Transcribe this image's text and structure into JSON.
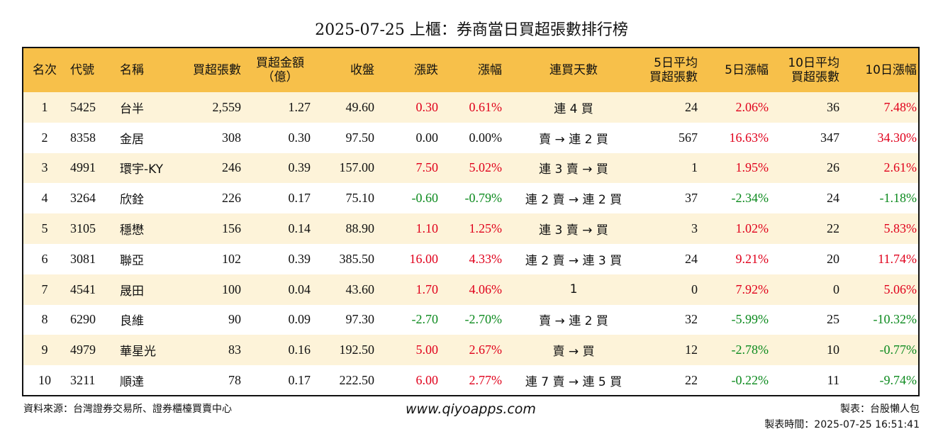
{
  "title": "2025-07-25 上櫃：券商當日買超張數排行榜",
  "headers": {
    "rank": "名次",
    "code": "代號",
    "name": "名稱",
    "net_buy_lots": "買超張數",
    "net_buy_amount": "買超金額\n（億）",
    "close": "收盤",
    "change": "漲跌",
    "change_pct": "漲幅",
    "streak": "連買天數",
    "avg5": "5日平均\n買超張數",
    "chg5": "5日漲幅",
    "avg10": "10日平均\n買超張數",
    "chg10": "10日漲幅"
  },
  "rows": [
    {
      "rank": "1",
      "code": "5425",
      "name": "台半",
      "lots": "2,559",
      "amount": "1.27",
      "close": "49.60",
      "change": "0.30",
      "change_pct": "0.61%",
      "streak": "連 4 買",
      "avg5": "24",
      "chg5": "2.06%",
      "avg10": "36",
      "chg10": "7.48%"
    },
    {
      "rank": "2",
      "code": "8358",
      "name": "金居",
      "lots": "308",
      "amount": "0.30",
      "close": "97.50",
      "change": "0.00",
      "change_pct": "0.00%",
      "streak": "賣 → 連 2 買",
      "avg5": "567",
      "chg5": "16.63%",
      "avg10": "347",
      "chg10": "34.30%"
    },
    {
      "rank": "3",
      "code": "4991",
      "name": "環宇-KY",
      "lots": "246",
      "amount": "0.39",
      "close": "157.00",
      "change": "7.50",
      "change_pct": "5.02%",
      "streak": "連 3 賣 → 買",
      "avg5": "1",
      "chg5": "1.95%",
      "avg10": "26",
      "chg10": "2.61%"
    },
    {
      "rank": "4",
      "code": "3264",
      "name": "欣銓",
      "lots": "226",
      "amount": "0.17",
      "close": "75.10",
      "change": "-0.60",
      "change_pct": "-0.79%",
      "streak": "連 2 賣 → 連 2 買",
      "avg5": "37",
      "chg5": "-2.34%",
      "avg10": "24",
      "chg10": "-1.18%"
    },
    {
      "rank": "5",
      "code": "3105",
      "name": "穩懋",
      "lots": "156",
      "amount": "0.14",
      "close": "88.90",
      "change": "1.10",
      "change_pct": "1.25%",
      "streak": "連 3 賣 → 買",
      "avg5": "3",
      "chg5": "1.02%",
      "avg10": "22",
      "chg10": "5.83%"
    },
    {
      "rank": "6",
      "code": "3081",
      "name": "聯亞",
      "lots": "102",
      "amount": "0.39",
      "close": "385.50",
      "change": "16.00",
      "change_pct": "4.33%",
      "streak": "連 2 賣 → 連 3 買",
      "avg5": "24",
      "chg5": "9.21%",
      "avg10": "20",
      "chg10": "11.74%"
    },
    {
      "rank": "7",
      "code": "4541",
      "name": "晟田",
      "lots": "100",
      "amount": "0.04",
      "close": "43.60",
      "change": "1.70",
      "change_pct": "4.06%",
      "streak": "1",
      "avg5": "0",
      "chg5": "7.92%",
      "avg10": "0",
      "chg10": "5.06%"
    },
    {
      "rank": "8",
      "code": "6290",
      "name": "良維",
      "lots": "90",
      "amount": "0.09",
      "close": "97.30",
      "change": "-2.70",
      "change_pct": "-2.70%",
      "streak": "賣 → 連 2 買",
      "avg5": "32",
      "chg5": "-5.99%",
      "avg10": "25",
      "chg10": "-10.32%"
    },
    {
      "rank": "9",
      "code": "4979",
      "name": "華星光",
      "lots": "83",
      "amount": "0.16",
      "close": "192.50",
      "change": "5.00",
      "change_pct": "2.67%",
      "streak": "賣 → 買",
      "avg5": "12",
      "chg5": "-2.78%",
      "avg10": "10",
      "chg10": "-0.77%"
    },
    {
      "rank": "10",
      "code": "3211",
      "name": "順達",
      "lots": "78",
      "amount": "0.17",
      "close": "222.50",
      "change": "6.00",
      "change_pct": "2.77%",
      "streak": "連 7 賣 → 連 5 買",
      "avg5": "22",
      "chg5": "-0.22%",
      "avg10": "11",
      "chg10": "-9.74%"
    }
  ],
  "colors": {
    "header_bg": "#f7c04a",
    "odd_row_bg": "#fdf3d9",
    "up": "#e0001b",
    "down": "#0c8a1e"
  },
  "footer": {
    "source": "資料來源：台灣證券交易所、證券櫃檯買賣中心",
    "site": "www.qiyoapps.com",
    "maker": "製表：台股懶人包",
    "made_time": "製表時間：2025-07-25 16:51:41"
  }
}
